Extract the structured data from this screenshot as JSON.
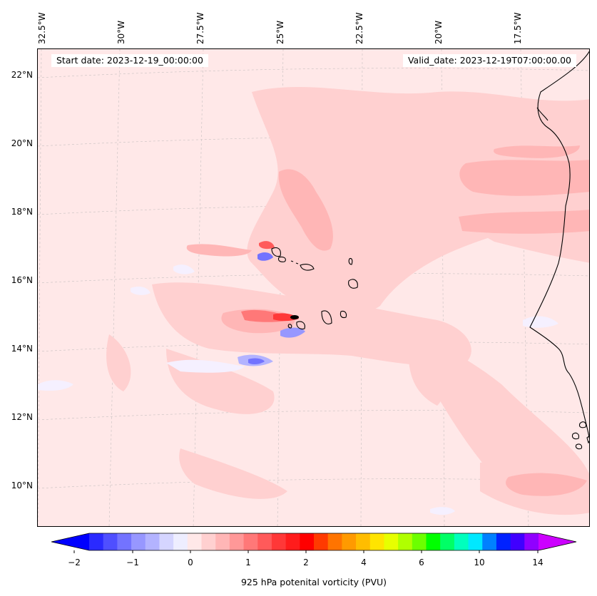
{
  "map": {
    "start_date": "Start date: 2023-12-19_00:00:00",
    "valid_date": "Valid_date: 2023-12-19T07:00:00.00",
    "lon_labels": [
      "32.5°W",
      "30°W",
      "27.5°W",
      "25°W",
      "22.5°W",
      "20°W",
      "17.5°W"
    ],
    "lat_labels": [
      "22°N",
      "20°N",
      "18°N",
      "16°N",
      "14°N",
      "12°N",
      "10°N"
    ],
    "field_name": "925 hPa potenital vorticity (PVU)",
    "background_color": "#ffe8e8",
    "coastline_color": "#000000"
  },
  "colorbar": {
    "ticks": [
      "−2",
      "−1",
      "0",
      "1",
      "2",
      "4",
      "6",
      "10",
      "14"
    ],
    "colors": [
      "#0000ff",
      "#2a2aff",
      "#4f4fff",
      "#7373ff",
      "#9797ff",
      "#b3b3ff",
      "#d5d5ff",
      "#eeeeff",
      "#ffe8e8",
      "#ffd0d0",
      "#ffb6b6",
      "#ff9898",
      "#ff7878",
      "#ff5a5a",
      "#ff3838",
      "#ff1c1c",
      "#ff0000",
      "#ff3a00",
      "#ff7400",
      "#ff9a00",
      "#ffbd00",
      "#ffe400",
      "#e7ff00",
      "#b0ff00",
      "#6cff00",
      "#00ff00",
      "#00ff66",
      "#00ffbd",
      "#00e8ff",
      "#0080ff",
      "#0022ff",
      "#4000ff",
      "#9000ff",
      "#cc00ff"
    ]
  }
}
